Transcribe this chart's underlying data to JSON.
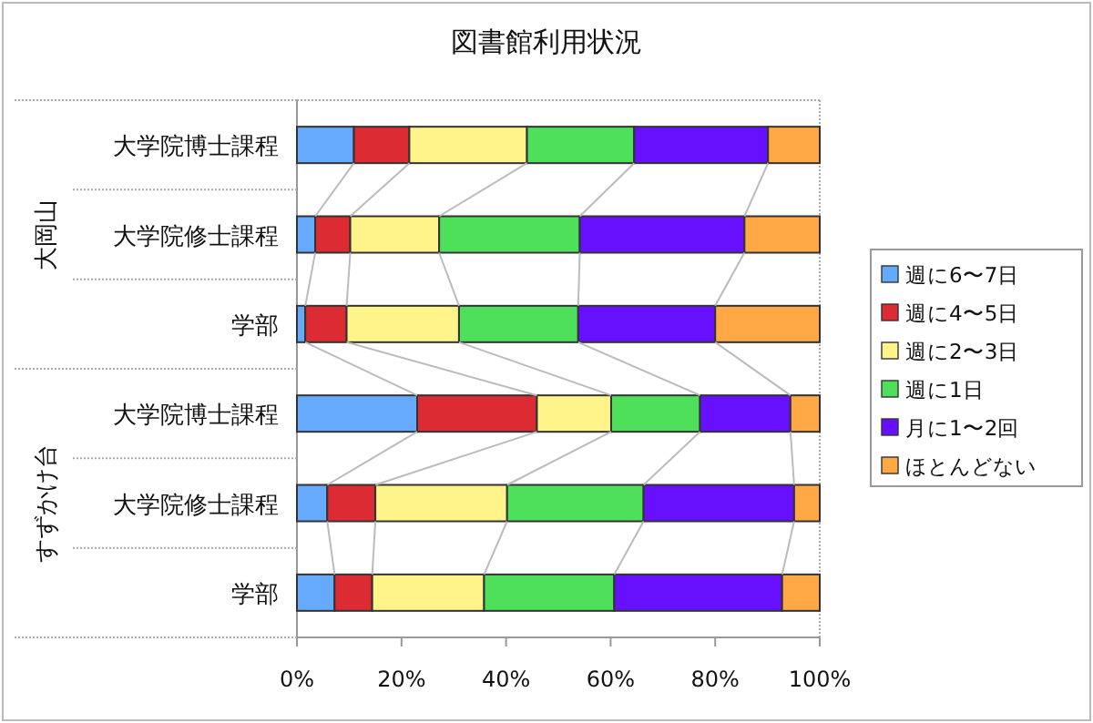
{
  "chart_data": {
    "type": "bar",
    "orientation": "horizontal",
    "stacked": true,
    "title": "図書館利用状況",
    "categories": [
      "大学院博士課程",
      "大学院修士課程",
      "学部",
      "大学院博士課程",
      "大学院修士課程",
      "学部"
    ],
    "annotations": [
      "大岡山",
      "すずかけ台"
    ],
    "series": [
      {
        "name": "週に6〜7日",
        "color": "#66aaff",
        "values": [
          10.9,
          3.5,
          1.6,
          23.0,
          5.8,
          7.2
        ]
      },
      {
        "name": "週に4〜5日",
        "color": "#dd2b33",
        "values": [
          10.6,
          6.7,
          7.9,
          22.9,
          9.2,
          7.2
        ]
      },
      {
        "name": "週に2〜3日",
        "color": "#fff48a",
        "values": [
          22.5,
          17.0,
          21.5,
          14.2,
          25.2,
          21.4
        ]
      },
      {
        "name": "週に1日",
        "color": "#4ee05a",
        "values": [
          20.5,
          26.9,
          22.8,
          17.0,
          26.1,
          24.9
        ]
      },
      {
        "name": "月に1〜2回",
        "color": "#6610ff",
        "values": [
          25.6,
          31.5,
          26.2,
          17.3,
          28.8,
          32.1
        ]
      },
      {
        "name": "ほとんどない",
        "color": "#ffa845",
        "values": [
          9.9,
          14.4,
          20.0,
          5.6,
          4.9,
          7.2
        ]
      }
    ],
    "xlim": [
      0,
      100
    ],
    "xticks": [
      {
        "value": 0,
        "label": "0%"
      },
      {
        "value": 20,
        "label": "20%"
      },
      {
        "value": 40,
        "label": "40%"
      },
      {
        "value": 60,
        "label": "60%"
      },
      {
        "value": 80,
        "label": "80%"
      },
      {
        "value": 100,
        "label": "100%"
      }
    ],
    "legend": "right"
  }
}
